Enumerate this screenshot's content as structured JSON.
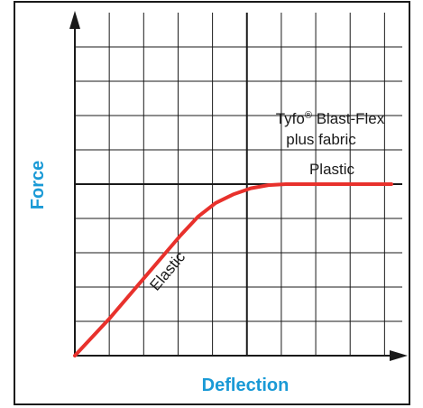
{
  "chart_data": {
    "type": "line",
    "title": "",
    "xlabel": "Deflection",
    "ylabel": "Force",
    "xlim": [
      0,
      9
    ],
    "ylim": [
      0,
      8
    ],
    "grid": true,
    "x_tick_labels": [],
    "y_tick_labels": [],
    "series": [
      {
        "name": "",
        "color": "#e8312c",
        "points": [
          {
            "x": 0,
            "y": 0
          },
          {
            "x": 1,
            "y": 1.1
          },
          {
            "x": 2,
            "y": 2.3
          },
          {
            "x": 3,
            "y": 3.5
          },
          {
            "x": 3.5,
            "y": 4.05
          },
          {
            "x": 4,
            "y": 4.45
          },
          {
            "x": 4.5,
            "y": 4.7
          },
          {
            "x": 5,
            "y": 4.88
          },
          {
            "x": 5.5,
            "y": 4.97
          },
          {
            "x": 6,
            "y": 5.0
          },
          {
            "x": 9,
            "y": 5.0
          }
        ]
      }
    ],
    "annotations": [
      {
        "id": "elastic",
        "text": "Elastic",
        "x": 2.2,
        "y": 2.4
      },
      {
        "id": "plastic",
        "text": "Plastic",
        "x": 7.3,
        "y": 4.5
      },
      {
        "id": "product-line1-brand",
        "text": "Tyfo",
        "x": 5.0,
        "y": 7.0
      },
      {
        "id": "product-line1-reg",
        "text": "®"
      },
      {
        "id": "product-line1-rest",
        "text": " Blast-Flex"
      },
      {
        "id": "product-line2",
        "text": "plus fabric",
        "x": 7.0,
        "y": 6.3
      }
    ]
  },
  "colors": {
    "frame": "#1a1a1a",
    "grid": "#1a1a1a",
    "axis": "#1a1a1a",
    "axis_title": "#1a9ad6",
    "curve": "#e8312c",
    "text": "#1a1a1a"
  }
}
